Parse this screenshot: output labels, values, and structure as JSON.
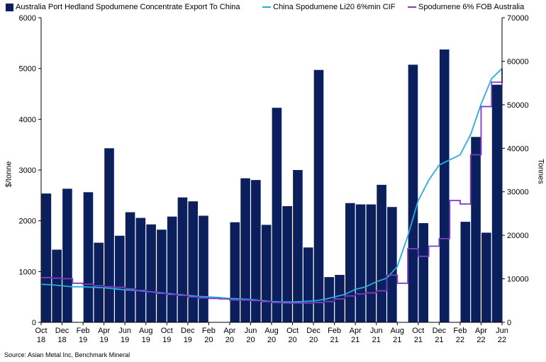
{
  "chart_data": {
    "type": "bar+line",
    "title": "",
    "series": [
      {
        "name": "Australia Port Hedland Spodumene Concentrate Export To China",
        "kind": "bar",
        "axis": "right",
        "color": "#0b1f5c",
        "values": [
          29600,
          16700,
          30700,
          0,
          29900,
          18300,
          40000,
          19900,
          25300,
          24000,
          22500,
          21300,
          24300,
          28700,
          27800,
          24500,
          0,
          0,
          23000,
          33100,
          32700,
          22400,
          49300,
          26700,
          35000,
          17200,
          58000,
          10400,
          10900,
          27400,
          27100,
          27100,
          31600,
          26500,
          0,
          59200,
          22800,
          0,
          62700,
          0,
          23100,
          42600,
          20600,
          54600
        ]
      },
      {
        "name": "China Spodumene Li20 6%min CIF",
        "kind": "line",
        "axis": "left",
        "color": "#29abe2",
        "values": [
          750,
          740,
          720,
          700,
          700,
          690,
          680,
          660,
          640,
          630,
          610,
          590,
          570,
          550,
          530,
          510,
          500,
          490,
          470,
          460,
          450,
          430,
          410,
          400,
          400,
          410,
          420,
          450,
          500,
          550,
          650,
          700,
          800,
          870,
          1100,
          1700,
          2400,
          2800,
          3100,
          3200,
          3300,
          3700,
          4300,
          4800,
          5000
        ]
      },
      {
        "name": "Spodumene 6% FOB Australia",
        "kind": "step",
        "axis": "left",
        "color": "#7b3fbf",
        "values": [
          880,
          870,
          860,
          770,
          750,
          720,
          700,
          690,
          660,
          630,
          600,
          570,
          550,
          530,
          500,
          480,
          470,
          460,
          440,
          440,
          430,
          410,
          390,
          380,
          380,
          380,
          390,
          410,
          460,
          520,
          560,
          580,
          620,
          930,
          770,
          1450,
          1300,
          1500,
          1650,
          2400,
          2330,
          3300,
          4250,
          4730,
          4990
        ]
      }
    ],
    "y_left": {
      "label": "$/tonne",
      "range": [
        0,
        6000
      ],
      "ticks": [
        "0",
        "1000",
        "2000",
        "3000",
        "4000",
        "5000",
        "6000"
      ]
    },
    "y_right": {
      "label": "Tonnes",
      "range": [
        0,
        70000
      ],
      "ticks": [
        "0",
        "10000",
        "20000",
        "30000",
        "40000",
        "50000",
        "60000",
        "70000"
      ]
    },
    "x_ticks": [
      {
        "month": "Oct",
        "year": "18"
      },
      {
        "month": "Dec",
        "year": "18"
      },
      {
        "month": "Feb",
        "year": "19"
      },
      {
        "month": "Apr",
        "year": "19"
      },
      {
        "month": "Jun",
        "year": "19"
      },
      {
        "month": "Aug",
        "year": "19"
      },
      {
        "month": "Oct",
        "year": "19"
      },
      {
        "month": "Dec",
        "year": "19"
      },
      {
        "month": "Feb",
        "year": "20"
      },
      {
        "month": "Apr",
        "year": "20"
      },
      {
        "month": "Jun",
        "year": "20"
      },
      {
        "month": "Aug",
        "year": "20"
      },
      {
        "month": "Oct",
        "year": "20"
      },
      {
        "month": "Dec",
        "year": "20"
      },
      {
        "month": "Feb",
        "year": "21"
      },
      {
        "month": "Apr",
        "year": "21"
      },
      {
        "month": "Jun",
        "year": "21"
      },
      {
        "month": "Aug",
        "year": "21"
      },
      {
        "month": "Oct",
        "year": "21"
      },
      {
        "month": "Dec",
        "year": "21"
      },
      {
        "month": "Feb",
        "year": "22"
      },
      {
        "month": "Apr",
        "year": "22"
      },
      {
        "month": "Jun",
        "year": "22"
      }
    ],
    "legend": "top",
    "grid": false
  },
  "legend": {
    "bar_label": "Australia Port Hedland Spodumene Concentrate Export To China",
    "cif_label": "China Spodumene Li20 6%min CIF",
    "fob_label": "Spodumene 6% FOB Australia"
  },
  "axis_titles": {
    "left": "$/tonne",
    "right": "Tonnes"
  },
  "source": "Source: Asian Metal Inc, Benchmark Mineral"
}
